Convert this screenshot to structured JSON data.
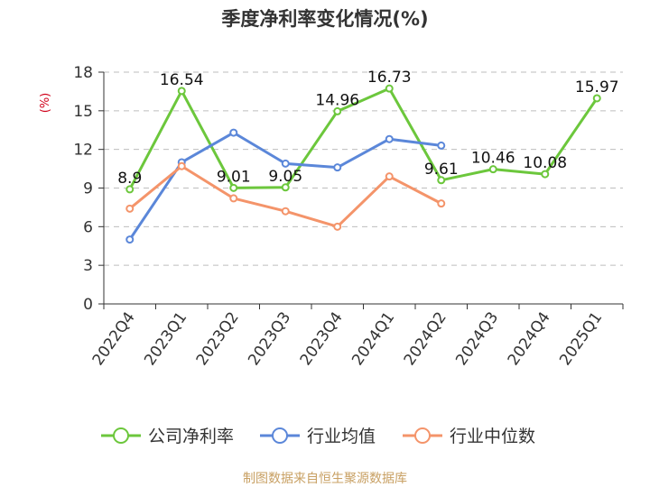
{
  "chart_data": {
    "type": "line",
    "title": "季度净利率变化情况(%)",
    "ylabel": "(%)",
    "ylim": [
      0,
      18
    ],
    "yticks": [
      0,
      3,
      6,
      9,
      12,
      15,
      18
    ],
    "grid": true,
    "legend_position": "bottom",
    "categories": [
      "2022Q4",
      "2023Q1",
      "2023Q2",
      "2023Q3",
      "2023Q4",
      "2024Q1",
      "2024Q2",
      "2024Q3",
      "2024Q4",
      "2025Q1"
    ],
    "series": [
      {
        "name": "公司净利率",
        "color": "#6cc73c",
        "values": [
          8.9,
          16.54,
          9.01,
          9.05,
          14.96,
          16.73,
          9.61,
          10.46,
          10.08,
          15.97
        ],
        "labels": [
          "8.9",
          "16.54",
          "9.01",
          "9.05",
          "14.96",
          "16.73",
          "9.61",
          "10.46",
          "10.08",
          "15.97"
        ]
      },
      {
        "name": "行业均值",
        "color": "#5b87d9",
        "values": [
          5.0,
          11.0,
          13.3,
          10.9,
          10.6,
          12.8,
          12.3,
          null,
          null,
          null
        ]
      },
      {
        "name": "行业中位数",
        "color": "#f4946a",
        "values": [
          7.4,
          10.7,
          8.2,
          7.2,
          6.0,
          9.9,
          7.8,
          null,
          null,
          null
        ]
      }
    ],
    "source": "制图数据来自恒生聚源数据库"
  }
}
